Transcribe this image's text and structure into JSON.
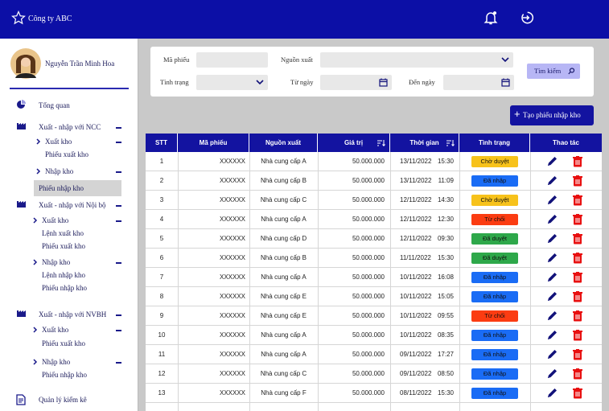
{
  "header": {
    "company": "Công ty ABC"
  },
  "sidebar": {
    "user": "Nguyễn Trần Minh Hoa",
    "menu": [
      {
        "label": "Tổng quan"
      },
      {
        "label": "Xuất - nhập với NCC",
        "children": [
          {
            "label": "Xuất kho",
            "items": [
              "Phiếu xuất kho"
            ]
          },
          {
            "label": "Nhập kho",
            "items": [
              "Phiếu nhập kho"
            ]
          }
        ]
      },
      {
        "label": "Xuất - nhập với Nội bộ",
        "children": [
          {
            "label": "Xuất kho",
            "items": [
              "Lệnh xuất kho",
              "Phiếu xuất kho"
            ]
          },
          {
            "label": "Nhập kho",
            "items": [
              "Lệnh nhập kho",
              "Phiếu nhập kho"
            ]
          }
        ]
      },
      {
        "label": "Xuất - nhập với NVBH",
        "children": [
          {
            "label": "Xuất kho",
            "items": [
              "Phiếu xuất kho"
            ]
          },
          {
            "label": "Nhập kho",
            "items": [
              "Phiếu nhập kho"
            ]
          }
        ]
      },
      {
        "label": "Quản lý kiểm kê"
      }
    ]
  },
  "filters": {
    "code": "Mã phiếu",
    "source": "Nguồn xuất",
    "status": "Tình trạng",
    "from": "Từ ngày",
    "to": "Đến ngày",
    "search": "Tìm kiếm"
  },
  "create_button": "Tạo phiếu nhập kho",
  "table": {
    "columns": [
      "STT",
      "Mã phiếu",
      "Nguồn xuất",
      "Giá trị",
      "Thời gian",
      "Tình trạng",
      "Thao tác"
    ],
    "rows": [
      {
        "stt": "1",
        "code": "XXXXXX",
        "source": "Nhà cung cấp A",
        "value": "50.000.000",
        "date": "13/11/2022",
        "time": "15:30",
        "status": "Chờ duyệt",
        "status_color": "#f7c21b"
      },
      {
        "stt": "2",
        "code": "XXXXXX",
        "source": "Nhà cung cấp B",
        "value": "50.000.000",
        "date": "13/11/2022",
        "time": "11:09",
        "status": "Đã nhập",
        "status_color": "#1a6cf5"
      },
      {
        "stt": "3",
        "code": "XXXXXX",
        "source": "Nhà cung cấp C",
        "value": "50.000.000",
        "date": "12/11/2022",
        "time": "14:30",
        "status": "Chờ duyệt",
        "status_color": "#f7c21b"
      },
      {
        "stt": "4",
        "code": "XXXXXX",
        "source": "Nhà cung cấp A",
        "value": "50.000.000",
        "date": "12/11/2022",
        "time": "12:30",
        "status": "Từ chối",
        "status_color": "#fb3c12"
      },
      {
        "stt": "5",
        "code": "XXXXXX",
        "source": "Nhà cung cấp D",
        "value": "50.000.000",
        "date": "12/11/2022",
        "time": "09:30",
        "status": "Đã duyệt",
        "status_color": "#2ea84a"
      },
      {
        "stt": "6",
        "code": "XXXXXX",
        "source": "Nhà cung cấp B",
        "value": "50.000.000",
        "date": "11/11/2022",
        "time": "15:30",
        "status": "Đã duyệt",
        "status_color": "#2ea84a"
      },
      {
        "stt": "7",
        "code": "XXXXXX",
        "source": "Nhà cung cấp A",
        "value": "50.000.000",
        "date": "10/11/2022",
        "time": "16:08",
        "status": "Đã nhập",
        "status_color": "#1a6cf5"
      },
      {
        "stt": "8",
        "code": "XXXXXX",
        "source": "Nhà cung cấp E",
        "value": "50.000.000",
        "date": "10/11/2022",
        "time": "15:05",
        "status": "Đã nhập",
        "status_color": "#1a6cf5"
      },
      {
        "stt": "9",
        "code": "XXXXXX",
        "source": "Nhà cung cấp E",
        "value": "50.000.000",
        "date": "10/11/2022",
        "time": "09:55",
        "status": "Từ chối",
        "status_color": "#fb3c12"
      },
      {
        "stt": "10",
        "code": "XXXXXX",
        "source": "Nhà cung cấp A",
        "value": "50.000.000",
        "date": "10/11/2022",
        "time": "08:35",
        "status": "Đã nhập",
        "status_color": "#1a6cf5"
      },
      {
        "stt": "11",
        "code": "XXXXXX",
        "source": "Nhà cung cấp A",
        "value": "50.000.000",
        "date": "09/11/2022",
        "time": "17:27",
        "status": "Đã nhập",
        "status_color": "#1a6cf5"
      },
      {
        "stt": "12",
        "code": "XXXXXX",
        "source": "Nhà cung cấp C",
        "value": "50.000.000",
        "date": "09/11/2022",
        "time": "08:50",
        "status": "Đã nhập",
        "status_color": "#1a6cf5"
      },
      {
        "stt": "13",
        "code": "XXXXXX",
        "source": "Nhà cung cấp F",
        "value": "50.000.000",
        "date": "08/11/2022",
        "time": "15:30",
        "status": "Đã nhập",
        "status_color": "#1a6cf5"
      }
    ]
  }
}
